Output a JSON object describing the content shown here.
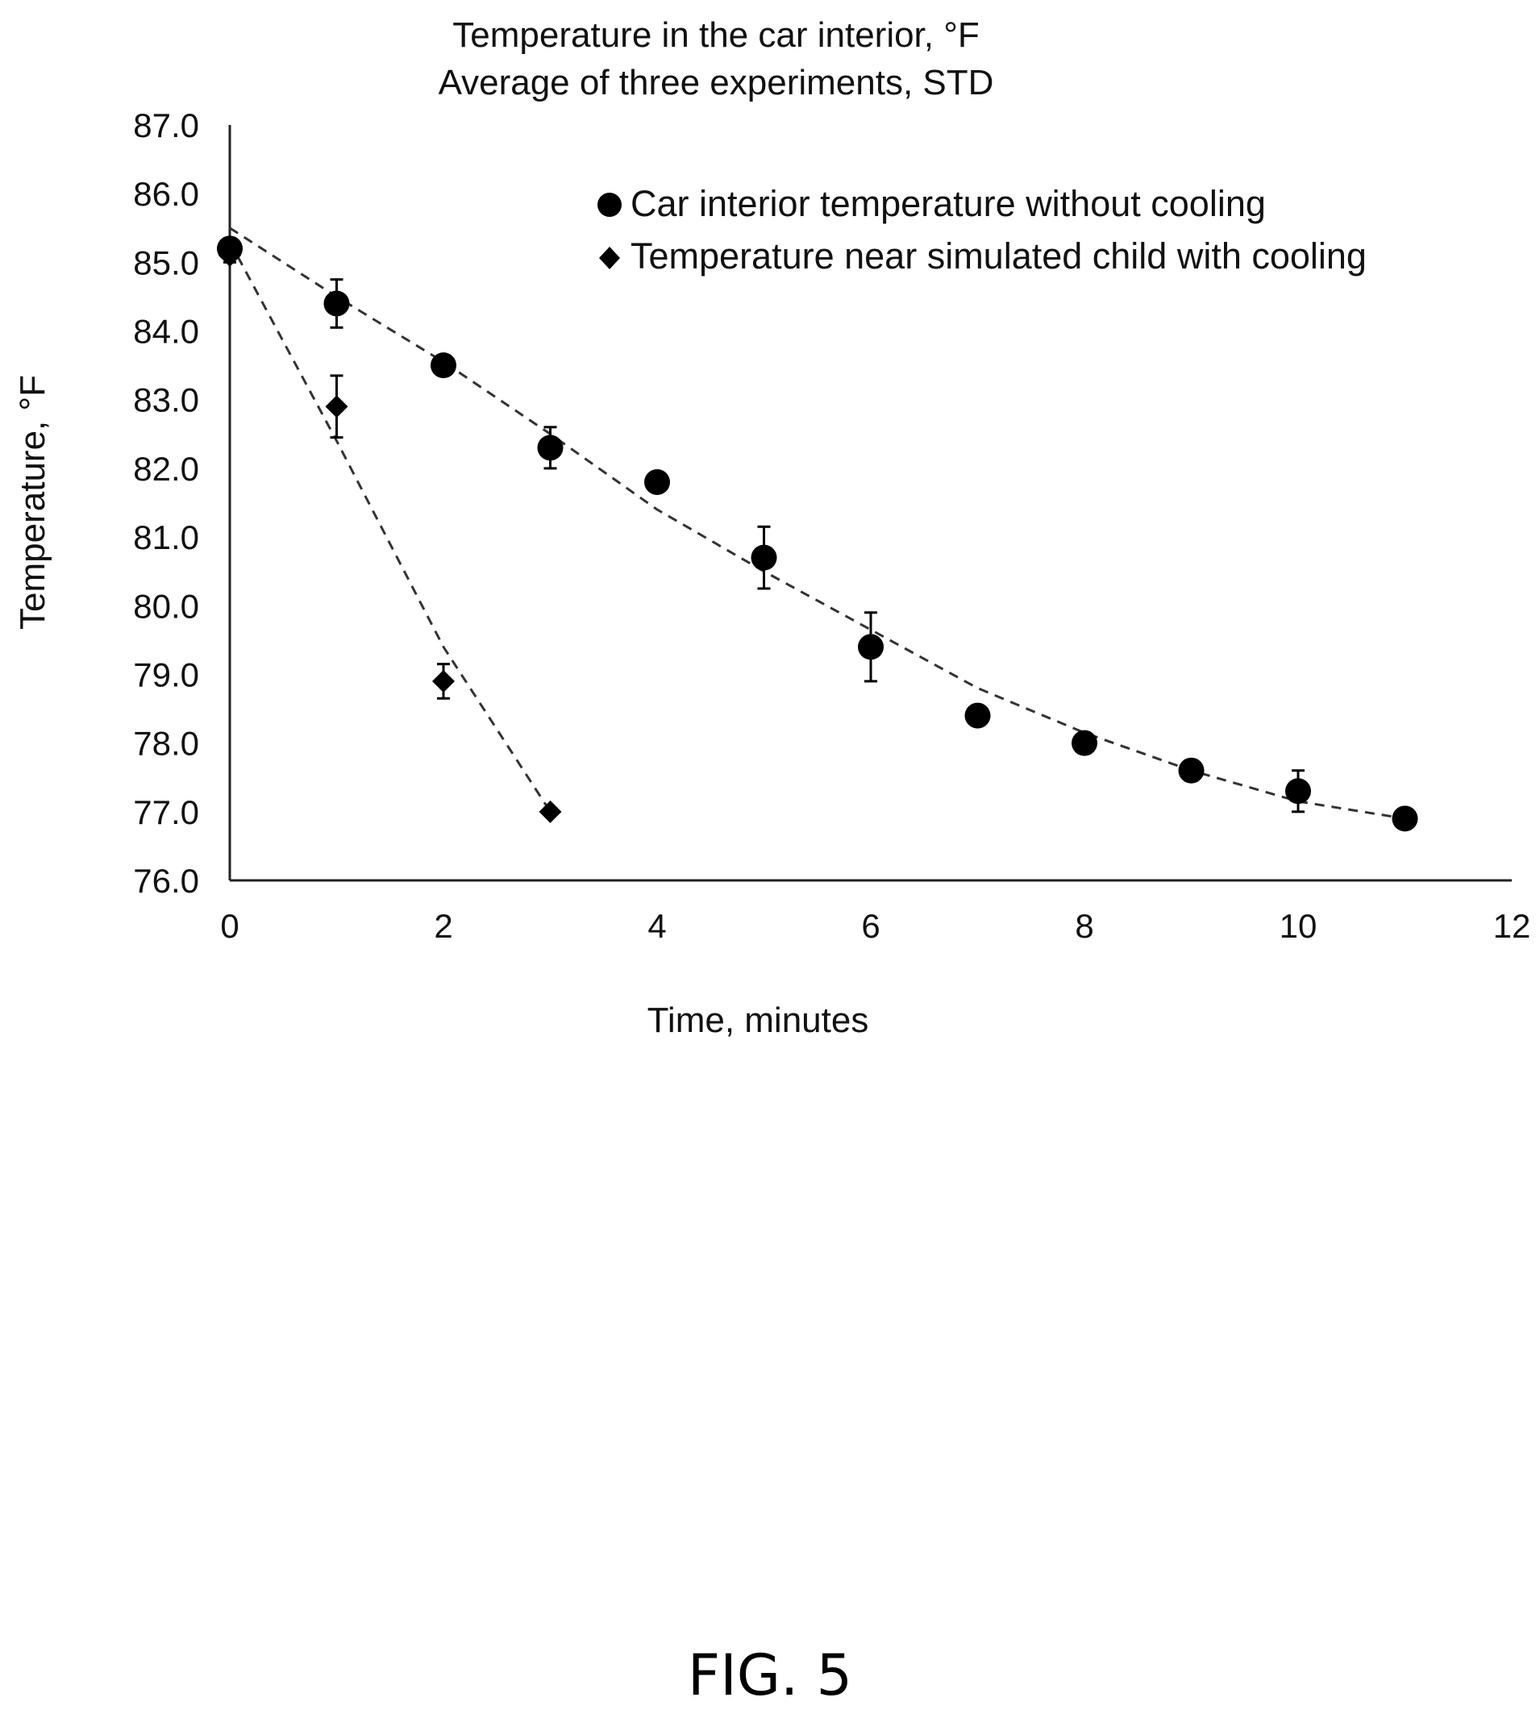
{
  "chart_data": {
    "type": "scatter",
    "title": "Temperature in the car interior, °F",
    "subtitle": "Average of three experiments, STD",
    "xlabel": "Time, minutes",
    "ylabel": "Temperature, °F",
    "xlim": [
      0,
      12
    ],
    "ylim": [
      76.0,
      87.0
    ],
    "xticks": [
      "0",
      "2",
      "4",
      "6",
      "8",
      "10",
      "12"
    ],
    "yticks": [
      "76.0",
      "77.0",
      "78.0",
      "79.0",
      "80.0",
      "81.0",
      "82.0",
      "83.0",
      "84.0",
      "85.0",
      "86.0",
      "87.0"
    ],
    "grid": false,
    "legend_position": "top-right",
    "series": [
      {
        "name": "Car interior temperature without cooling",
        "marker": "circle",
        "x": [
          0,
          1,
          2,
          3,
          4,
          5,
          6,
          7,
          8,
          9,
          10,
          11
        ],
        "y": [
          85.2,
          84.4,
          83.5,
          82.3,
          81.8,
          80.7,
          79.4,
          78.4,
          78.0,
          77.6,
          77.3,
          76.9
        ],
        "error": [
          0.15,
          0.35,
          0.1,
          0.3,
          0.1,
          0.45,
          0.5,
          0.1,
          0.15,
          0.15,
          0.3,
          0.05
        ],
        "trendline": {
          "x": [
            0,
            1,
            2,
            3,
            4,
            5,
            6,
            7,
            8,
            9,
            10,
            11
          ],
          "y": [
            85.5,
            84.5,
            83.55,
            82.5,
            81.4,
            80.5,
            79.65,
            78.8,
            78.15,
            77.6,
            77.15,
            76.9
          ]
        }
      },
      {
        "name": "Temperature near simulated child with cooling",
        "marker": "diamond",
        "x": [
          0,
          1,
          2,
          3
        ],
        "y": [
          85.1,
          82.9,
          78.9,
          77.0
        ],
        "error": [
          0.1,
          0.45,
          0.25,
          0.05
        ],
        "trendline": {
          "x": [
            0,
            1,
            2,
            3
          ],
          "y": [
            85.3,
            82.4,
            79.4,
            77.0
          ]
        }
      }
    ]
  },
  "figure_label": "FIG. 5"
}
